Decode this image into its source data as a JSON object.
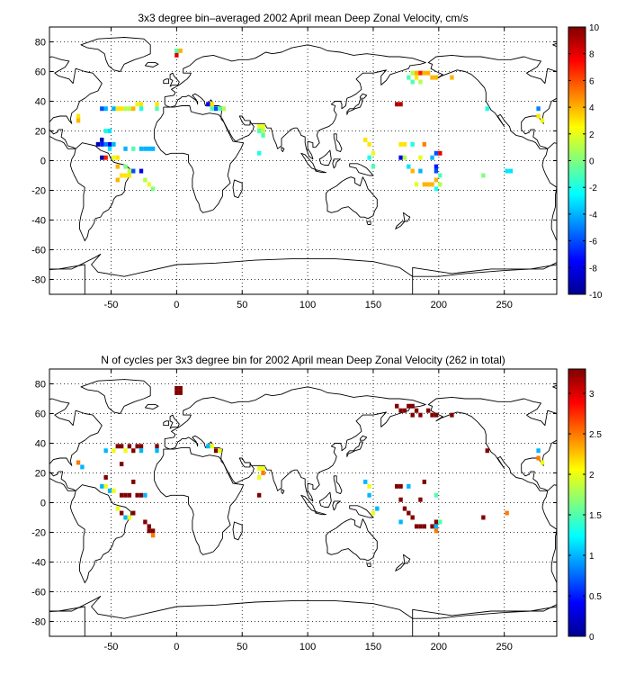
{
  "chart_data": [
    {
      "type": "heatmap",
      "title": "3x3 degree bin–averaged 2002 April mean Deep Zonal Velocity, cm/s",
      "xlabel": "",
      "ylabel": "",
      "xlim": [
        -97,
        290
      ],
      "ylim": [
        -90,
        90
      ],
      "xticks": [
        -50,
        0,
        50,
        100,
        150,
        200,
        250
      ],
      "yticks": [
        -80,
        -60,
        -40,
        -20,
        0,
        20,
        40,
        60,
        80
      ],
      "grid": true,
      "colorbar": {
        "min": -10,
        "max": 10,
        "ticks": [
          -10,
          -8,
          -6,
          -4,
          -2,
          0,
          2,
          4,
          6,
          8,
          10
        ],
        "colormap": "jet"
      },
      "bin_size_deg": 3,
      "cells": [
        [
          0,
          74,
          -1
        ],
        [
          3,
          74,
          4
        ],
        [
          0,
          71,
          8
        ],
        [
          -75,
          30,
          3
        ],
        [
          -75,
          27,
          4
        ],
        [
          -57,
          35,
          -6
        ],
        [
          -54,
          35,
          -4
        ],
        [
          -48,
          35,
          -4
        ],
        [
          -45,
          35,
          3
        ],
        [
          -42,
          35,
          3
        ],
        [
          -39,
          35,
          1
        ],
        [
          -36,
          35,
          1
        ],
        [
          -33,
          35,
          4
        ],
        [
          -30,
          38,
          2
        ],
        [
          -27,
          38,
          3
        ],
        [
          -27,
          35,
          -2
        ],
        [
          -15,
          35,
          -1
        ],
        [
          -15,
          38,
          3
        ],
        [
          -54,
          20,
          -2
        ],
        [
          -51,
          20,
          -3
        ],
        [
          -57,
          14,
          -9
        ],
        [
          -60,
          11,
          -9
        ],
        [
          -57,
          11,
          -7
        ],
        [
          -54,
          11,
          -5
        ],
        [
          -51,
          11,
          -8
        ],
        [
          -48,
          11,
          -4
        ],
        [
          -51,
          8,
          -3
        ],
        [
          -57,
          2,
          -9
        ],
        [
          -54,
          2,
          7
        ],
        [
          -48,
          2,
          2
        ],
        [
          -45,
          2,
          3
        ],
        [
          -39,
          8,
          -4
        ],
        [
          -33,
          8,
          -1
        ],
        [
          -27,
          8,
          -4
        ],
        [
          -24,
          8,
          -4
        ],
        [
          -21,
          8,
          -4
        ],
        [
          -18,
          8,
          -4
        ],
        [
          -45,
          -4,
          4
        ],
        [
          -39,
          -4,
          0
        ],
        [
          -36,
          -7,
          1
        ],
        [
          -33,
          -7,
          -6
        ],
        [
          -27,
          -7,
          -8
        ],
        [
          -42,
          -10,
          3
        ],
        [
          -39,
          -10,
          3
        ],
        [
          -36,
          -10,
          3
        ],
        [
          -45,
          -13,
          4
        ],
        [
          -24,
          -13,
          1
        ],
        [
          -21,
          -16,
          2
        ],
        [
          -18,
          -19,
          0
        ],
        [
          24,
          38,
          -8
        ],
        [
          27,
          38,
          3
        ],
        [
          27,
          35,
          -1
        ],
        [
          30,
          35,
          -6
        ],
        [
          33,
          35,
          -1
        ],
        [
          36,
          35,
          1
        ],
        [
          63,
          23,
          2
        ],
        [
          66,
          23,
          2
        ],
        [
          63,
          20,
          -1
        ],
        [
          66,
          20,
          1
        ],
        [
          66,
          17,
          -1
        ],
        [
          63,
          5,
          -2
        ],
        [
          168,
          38,
          9
        ],
        [
          171,
          38,
          9
        ],
        [
          180,
          59,
          1
        ],
        [
          183,
          59,
          4
        ],
        [
          186,
          59,
          7
        ],
        [
          189,
          59,
          4
        ],
        [
          192,
          59,
          4
        ],
        [
          195,
          56,
          4
        ],
        [
          198,
          56,
          4
        ],
        [
          183,
          56,
          3
        ],
        [
          177,
          56,
          -1
        ],
        [
          180,
          53,
          -1
        ],
        [
          186,
          53,
          1
        ],
        [
          210,
          56,
          4
        ],
        [
          237,
          35,
          -2
        ],
        [
          144,
          14,
          3
        ],
        [
          147,
          11,
          3
        ],
        [
          171,
          11,
          3
        ],
        [
          174,
          11,
          3
        ],
        [
          180,
          11,
          -2
        ],
        [
          189,
          11,
          5
        ],
        [
          186,
          2,
          2
        ],
        [
          198,
          5,
          -6
        ],
        [
          201,
          5,
          8
        ],
        [
          195,
          2,
          -4
        ],
        [
          150,
          5,
          2
        ],
        [
          147,
          2,
          -2
        ],
        [
          150,
          -4,
          -1
        ],
        [
          171,
          2,
          -8
        ],
        [
          174,
          2,
          1
        ],
        [
          177,
          -4,
          -3
        ],
        [
          180,
          -7,
          4
        ],
        [
          186,
          -7,
          -4
        ],
        [
          198,
          -4,
          -7
        ],
        [
          198,
          -7,
          -6
        ],
        [
          201,
          -10,
          -1
        ],
        [
          198,
          -13,
          4
        ],
        [
          195,
          -16,
          4
        ],
        [
          192,
          -16,
          4
        ],
        [
          189,
          -16,
          4
        ],
        [
          183,
          -16,
          2
        ],
        [
          201,
          -16,
          1
        ],
        [
          198,
          -19,
          -2
        ],
        [
          234,
          -10,
          0
        ],
        [
          252,
          -7,
          -3
        ],
        [
          255,
          -7,
          -3
        ],
        [
          276,
          35,
          -5
        ],
        [
          276,
          30,
          3
        ],
        [
          279,
          27,
          2
        ]
      ]
    },
    {
      "type": "heatmap",
      "title": "N of cycles per 3x3 degree bin for 2002 April mean Deep Zonal Velocity (262 in total)",
      "xlabel": "",
      "ylabel": "",
      "xlim": [
        -97,
        290
      ],
      "ylim": [
        -90,
        90
      ],
      "xticks": [
        -50,
        0,
        50,
        100,
        150,
        200,
        250
      ],
      "yticks": [
        -80,
        -60,
        -40,
        -20,
        0,
        20,
        40,
        60,
        80
      ],
      "grid": true,
      "colorbar": {
        "min": 0,
        "max": 3.3,
        "ticks": [
          0,
          0.5,
          1,
          1.5,
          2,
          2.5,
          3
        ],
        "colormap": "jet"
      },
      "bin_size_deg": 3,
      "cells": [
        [
          0,
          77,
          3.3
        ],
        [
          3,
          77,
          3.3
        ],
        [
          0,
          74,
          3.3
        ],
        [
          3,
          74,
          3.3
        ],
        [
          -75,
          27,
          2.5
        ],
        [
          -72,
          24,
          1.0
        ],
        [
          -54,
          35,
          1.0
        ],
        [
          -48,
          35,
          2.0
        ],
        [
          -45,
          38,
          3.3
        ],
        [
          -42,
          38,
          3.3
        ],
        [
          -39,
          35,
          2.0
        ],
        [
          -36,
          38,
          3.3
        ],
        [
          -33,
          35,
          3.3
        ],
        [
          -30,
          38,
          3.3
        ],
        [
          -27,
          38,
          3.3
        ],
        [
          -27,
          35,
          1.0
        ],
        [
          -15,
          38,
          3.3
        ],
        [
          -15,
          35,
          1.0
        ],
        [
          -42,
          26,
          3.3
        ],
        [
          -54,
          17,
          3.3
        ],
        [
          -57,
          11,
          1.0
        ],
        [
          -54,
          11,
          2.0
        ],
        [
          -51,
          8,
          1.0
        ],
        [
          -48,
          8,
          2.0
        ],
        [
          -42,
          5,
          3.3
        ],
        [
          -39,
          5,
          3.3
        ],
        [
          -36,
          5,
          3.3
        ],
        [
          -30,
          5,
          3.3
        ],
        [
          -27,
          5,
          3.3
        ],
        [
          -24,
          5,
          1.0
        ],
        [
          -33,
          14,
          3.3
        ],
        [
          -45,
          -4,
          2.0
        ],
        [
          -42,
          -7,
          3.3
        ],
        [
          -39,
          -10,
          1.0
        ],
        [
          -36,
          -10,
          2.0
        ],
        [
          -33,
          -7,
          3.3
        ],
        [
          -24,
          -13,
          3.3
        ],
        [
          -21,
          -16,
          3.3
        ],
        [
          -18,
          -19,
          3.3
        ],
        [
          -21,
          -19,
          3.3
        ],
        [
          -18,
          -22,
          2.5
        ],
        [
          24,
          38,
          1.0
        ],
        [
          27,
          38,
          2.0
        ],
        [
          30,
          35,
          3.3
        ],
        [
          33,
          35,
          2.0
        ],
        [
          63,
          23,
          2.0
        ],
        [
          66,
          23,
          2.0
        ],
        [
          63,
          17,
          2.0
        ],
        [
          66,
          20,
          2.5
        ],
        [
          63,
          5,
          3.3
        ],
        [
          168,
          65,
          3.3
        ],
        [
          171,
          62,
          3.3
        ],
        [
          174,
          62,
          3.3
        ],
        [
          177,
          65,
          3.3
        ],
        [
          180,
          65,
          3.3
        ],
        [
          183,
          62,
          3.3
        ],
        [
          186,
          59,
          3.3
        ],
        [
          180,
          59,
          3.3
        ],
        [
          192,
          62,
          3.3
        ],
        [
          195,
          59,
          3.3
        ],
        [
          198,
          59,
          3.3
        ],
        [
          210,
          59,
          3.3
        ],
        [
          237,
          35,
          3.3
        ],
        [
          144,
          14,
          1.0
        ],
        [
          147,
          11,
          2.0
        ],
        [
          147,
          5,
          1.0
        ],
        [
          168,
          11,
          3.3
        ],
        [
          171,
          11,
          3.3
        ],
        [
          177,
          11,
          1.0
        ],
        [
          189,
          14,
          3.3
        ],
        [
          198,
          5,
          1.5
        ],
        [
          186,
          2,
          3.3
        ],
        [
          171,
          2,
          3.3
        ],
        [
          174,
          -4,
          3.3
        ],
        [
          153,
          -4,
          1.0
        ],
        [
          150,
          -7,
          2.0
        ],
        [
          177,
          -7,
          3.3
        ],
        [
          180,
          -10,
          3.3
        ],
        [
          171,
          -13,
          1.0
        ],
        [
          183,
          -16,
          3.3
        ],
        [
          186,
          -16,
          3.3
        ],
        [
          189,
          -16,
          3.3
        ],
        [
          195,
          -16,
          3.3
        ],
        [
          198,
          -13,
          3.3
        ],
        [
          198,
          -16,
          1.0
        ],
        [
          198,
          -19,
          2.5
        ],
        [
          201,
          -13,
          1.5
        ],
        [
          234,
          -10,
          3.3
        ],
        [
          252,
          -7,
          2.5
        ],
        [
          276,
          35,
          1.0
        ],
        [
          276,
          30,
          2.5
        ],
        [
          279,
          27,
          2.0
        ]
      ]
    }
  ]
}
